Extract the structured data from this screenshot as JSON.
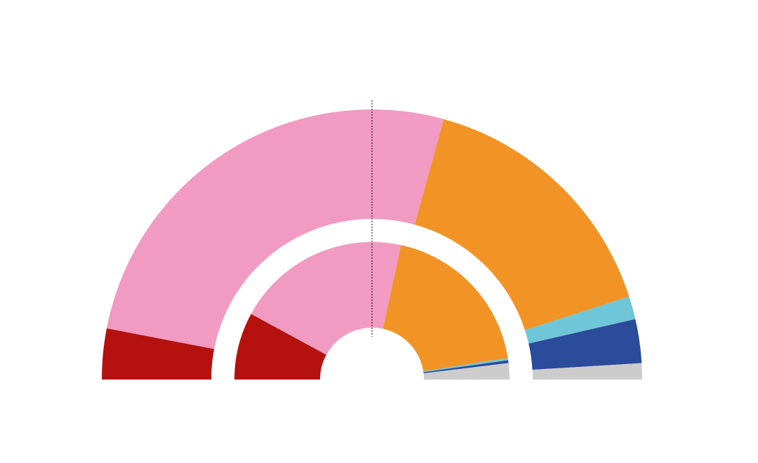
{
  "chart_data": {
    "type": "pie",
    "variant": "nested-half-donut",
    "majority_marker": true,
    "rings": [
      {
        "name": "",
        "level": "outer",
        "slices": [
          {
            "value": 11.0,
            "color": "#b5110e"
          },
          {
            "value": 95.0,
            "color": "#f19ac2"
          },
          {
            "value": 57.0,
            "color": "#f19425"
          },
          {
            "value": 5.0,
            "color": "#6fc6d8"
          },
          {
            "value": 9.5,
            "color": "#2b4b9b"
          },
          {
            "value": 3.5,
            "color": "#cccccc"
          }
        ]
      },
      {
        "name": "",
        "level": "inner",
        "slices": [
          {
            "value": 29.0,
            "color": "#b5110e"
          },
          {
            "value": 75.0,
            "color": "#f19ac2"
          },
          {
            "value": 70.0,
            "color": "#f19425"
          },
          {
            "value": 1.0,
            "color": "#6fc6d8"
          },
          {
            "value": 1.2,
            "color": "#2b4b9b"
          },
          {
            "value": 7.0,
            "color": "#cccccc"
          }
        ]
      }
    ]
  }
}
